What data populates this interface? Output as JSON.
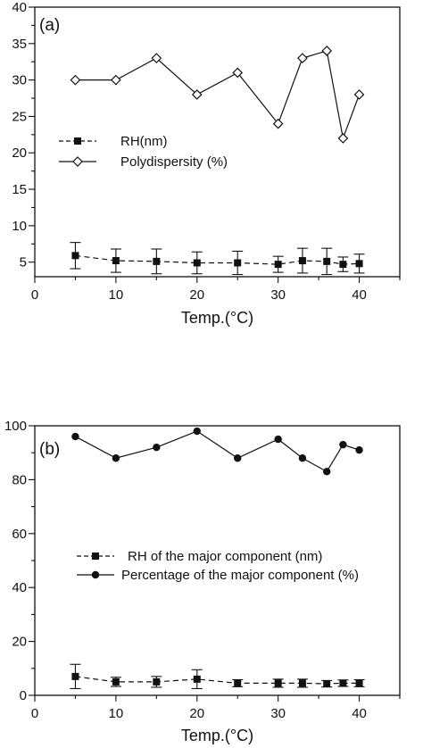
{
  "chart_data": [
    {
      "type": "line",
      "panel_label": "(a)",
      "xlabel": "Temp.(°C)",
      "ylabel": "",
      "xlim": [
        0,
        45
      ],
      "ylim": [
        3,
        40
      ],
      "xticks": [
        0,
        10,
        20,
        30,
        40
      ],
      "yticks": [
        5,
        10,
        15,
        20,
        25,
        30,
        35,
        40
      ],
      "grid": false,
      "legend": "middle-left",
      "series": [
        {
          "name": "RH(nm)",
          "marker": "filled-square",
          "style": "dashed",
          "x": [
            5,
            10,
            15,
            20,
            25,
            30,
            33,
            36,
            38,
            40
          ],
          "y": [
            5.9,
            5.2,
            5.1,
            4.9,
            4.9,
            4.7,
            5.2,
            5.1,
            4.7,
            4.8
          ],
          "err": [
            1.8,
            1.6,
            1.7,
            1.5,
            1.6,
            1.1,
            1.7,
            1.8,
            1.0,
            1.3
          ]
        },
        {
          "name": "Polydispersity (%)",
          "marker": "open-diamond",
          "style": "solid",
          "x": [
            5,
            10,
            15,
            20,
            25,
            30,
            33,
            36,
            38,
            40
          ],
          "y": [
            30,
            30,
            33,
            28,
            31,
            24,
            33,
            34,
            22,
            28
          ]
        }
      ]
    },
    {
      "type": "line",
      "panel_label": "(b)",
      "xlabel": "Temp.(°C)",
      "ylabel": "",
      "xlim": [
        0,
        45
      ],
      "ylim": [
        0,
        100
      ],
      "xticks": [
        0,
        10,
        20,
        30,
        40
      ],
      "yticks": [
        0,
        20,
        40,
        60,
        80,
        100
      ],
      "grid": false,
      "legend": "middle-left",
      "series": [
        {
          "name": "RH of the major component (nm)",
          "marker": "filled-square",
          "style": "dashed",
          "x": [
            5,
            10,
            15,
            20,
            25,
            30,
            33,
            36,
            38,
            40
          ],
          "y": [
            7,
            5,
            5,
            6,
            4.5,
            4.5,
            4.5,
            4.3,
            4.5,
            4.5
          ],
          "err": [
            4.5,
            1.7,
            2.0,
            3.5,
            1.3,
            1.5,
            1.5,
            1.2,
            1.2,
            1.3
          ]
        },
        {
          "name": "Percentage of the major component (%)",
          "marker": "filled-circle",
          "style": "solid",
          "x": [
            5,
            10,
            15,
            20,
            25,
            30,
            33,
            36,
            38,
            40
          ],
          "y": [
            96,
            88,
            92,
            98,
            88,
            95,
            88,
            83,
            93,
            91
          ]
        }
      ]
    }
  ]
}
